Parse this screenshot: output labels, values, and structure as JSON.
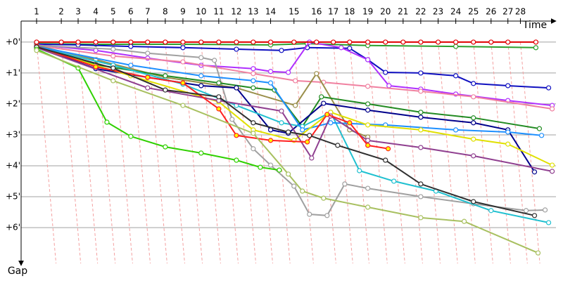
{
  "chart_data": {
    "type": "line",
    "x_label": "Time",
    "y_label": "Gap",
    "xlim": [
      0,
      197
    ],
    "ylim": [
      -0.68,
      7.16
    ],
    "y_reversed": true,
    "grid": true,
    "lap_lines": true,
    "xticks": [
      {
        "value": 5.7,
        "label": "1"
      },
      {
        "value": 14.8,
        "label": "2"
      },
      {
        "value": 21.0,
        "label": "3"
      },
      {
        "value": 27.5,
        "label": "4"
      },
      {
        "value": 33.9,
        "label": "5"
      },
      {
        "value": 40.4,
        "label": "6"
      },
      {
        "value": 46.6,
        "label": "7"
      },
      {
        "value": 53.1,
        "label": "8"
      },
      {
        "value": 59.6,
        "label": "9"
      },
      {
        "value": 66.3,
        "label": "10"
      },
      {
        "value": 72.8,
        "label": "11"
      },
      {
        "value": 79.3,
        "label": "12"
      },
      {
        "value": 85.5,
        "label": "13"
      },
      {
        "value": 91.9,
        "label": "14"
      },
      {
        "value": 100.5,
        "label": "15"
      },
      {
        "value": 108.8,
        "label": "16"
      },
      {
        "value": 115.0,
        "label": "17"
      },
      {
        "value": 121.0,
        "label": "18"
      },
      {
        "value": 127.7,
        "label": "19"
      },
      {
        "value": 134.2,
        "label": "20"
      },
      {
        "value": 140.7,
        "label": "21"
      },
      {
        "value": 147.2,
        "label": "22"
      },
      {
        "value": 153.6,
        "label": "23"
      },
      {
        "value": 160.1,
        "label": "24"
      },
      {
        "value": 166.6,
        "label": "25"
      },
      {
        "value": 173.1,
        "label": "26"
      },
      {
        "value": 179.3,
        "label": "27"
      },
      {
        "value": 183.9,
        "label": "28"
      }
    ],
    "yticks": [
      {
        "value": 0,
        "label": "+0'"
      },
      {
        "value": 1,
        "label": "+1'"
      },
      {
        "value": 2,
        "label": "+2'"
      },
      {
        "value": 3,
        "label": "+3'"
      },
      {
        "value": 4,
        "label": "+4'"
      },
      {
        "value": 5,
        "label": "+5'"
      },
      {
        "value": 6,
        "label": "+6'"
      }
    ],
    "series": [
      {
        "color": "#2ca02c",
        "x": [
          5.7,
          27.5,
          59.6,
          91.9,
          105.4,
          127.7,
          160.1,
          189.6
        ],
        "values": [
          0.05,
          0.07,
          0.07,
          0.09,
          0.05,
          0.11,
          0.14,
          0.18
        ]
      },
      {
        "color": "#1010c0",
        "x": [
          5.7,
          21.0,
          40.4,
          59.6,
          79.3,
          95.9,
          105.4,
          121.0,
          127.7,
          134.2,
          147.2,
          160.1,
          166.6,
          179.3,
          194.3
        ],
        "values": [
          0.07,
          0.09,
          0.14,
          0.18,
          0.23,
          0.27,
          0.18,
          0.2,
          0.57,
          0.98,
          1.0,
          1.09,
          1.34,
          1.41,
          1.48
        ]
      },
      {
        "color": "#b030ff",
        "x": [
          5.7,
          27.5,
          46.6,
          66.3,
          85.5,
          91.9,
          98.4,
          106.2,
          117.9,
          127.7,
          135.5,
          147.2,
          160.1,
          179.3,
          195.6
        ],
        "values": [
          0.09,
          0.27,
          0.52,
          0.75,
          0.86,
          0.95,
          0.98,
          0,
          0.18,
          0.57,
          1.41,
          1.52,
          1.68,
          1.89,
          2.05
        ]
      },
      {
        "color": "#f080a0",
        "x": [
          5.7,
          33.9,
          59.6,
          85.5,
          101.0,
          111.4,
          127.7,
          147.2,
          166.6,
          195.6
        ],
        "values": [
          0.11,
          0.45,
          0.64,
          1.02,
          1.25,
          1.3,
          1.43,
          1.59,
          1.77,
          2.16
        ]
      },
      {
        "color": "#a0a0a0",
        "x": [
          5.7,
          33.9,
          46.6,
          66.3,
          71.2,
          77.7,
          85.5,
          91.9,
          100.5,
          106.2,
          112.7,
          119.2,
          127.7,
          147.2,
          166.6,
          186.0,
          193.0
        ],
        "values": [
          0.11,
          0.23,
          0.36,
          0.5,
          0.59,
          2.5,
          3.45,
          3.98,
          4.66,
          5.57,
          5.61,
          4.59,
          4.73,
          5.0,
          5.23,
          5.45,
          5.43
        ]
      },
      {
        "color": "#9a8f4a",
        "x": [
          5.7,
          27.5,
          53.1,
          79.3,
          101.0,
          108.8,
          121.0,
          127.7
        ],
        "values": [
          0.11,
          0.57,
          1.14,
          1.48,
          2.05,
          1.02,
          2.84,
          3.07
        ]
      },
      {
        "color": "#228b22",
        "x": [
          5.7,
          27.5,
          53.1,
          72.8,
          85.5,
          93.3,
          103.6,
          110.6,
          127.7,
          147.2,
          166.6,
          190.9
        ],
        "values": [
          0.14,
          0.73,
          1.09,
          1.32,
          1.48,
          1.55,
          2.73,
          1.77,
          2.0,
          2.27,
          2.45,
          2.8
        ]
      },
      {
        "color": "#00008b",
        "x": [
          5.7,
          27.5,
          46.6,
          66.3,
          79.3,
          91.9,
          98.4,
          111.4,
          127.7,
          147.2,
          166.6,
          179.3,
          189.1
        ],
        "values": [
          0.16,
          0.86,
          1.14,
          1.41,
          1.48,
          2.84,
          2.95,
          1.98,
          2.2,
          2.43,
          2.61,
          2.84,
          4.2
        ]
      },
      {
        "color": "#20c0d0",
        "x": [
          5.7,
          33.9,
          59.6,
          79.3,
          95.9,
          103.6,
          114.0,
          124.6,
          137.3,
          152.8,
          173.1,
          194.3
        ],
        "values": [
          0.16,
          0.75,
          1.36,
          2.05,
          2.61,
          2.73,
          2.27,
          4.16,
          4.5,
          4.82,
          5.45,
          5.84
        ]
      },
      {
        "color": "#1e90ff",
        "x": [
          5.7,
          40.4,
          66.3,
          85.5,
          91.9,
          103.6,
          114.0,
          134.2,
          160.1,
          179.3,
          191.7
        ],
        "values": [
          0.14,
          0.75,
          1.09,
          1.25,
          1.32,
          2.84,
          2.61,
          2.68,
          2.84,
          2.91,
          3.02
        ]
      },
      {
        "color": "#e0e000",
        "x": [
          5.7,
          40.4,
          72.8,
          85.5,
          100.5,
          114.0,
          127.7,
          147.2,
          166.6,
          179.3,
          195.6
        ],
        "values": [
          0.18,
          1.09,
          1.93,
          2.84,
          3.18,
          2.27,
          2.68,
          2.84,
          3.14,
          3.3,
          3.98
        ]
      },
      {
        "color": "#904090",
        "x": [
          5.7,
          46.6,
          72.8,
          95.9,
          107.0,
          114.0,
          127.7,
          147.2,
          166.6,
          195.6
        ],
        "values": [
          0.18,
          1.48,
          1.89,
          2.23,
          3.75,
          2.39,
          3.18,
          3.41,
          3.68,
          4.18
        ]
      },
      {
        "color": "#ff2020",
        "marker_fill": "#ffff00",
        "x": [
          5.7,
          27.5,
          46.6,
          59.6,
          72.8,
          79.3,
          91.9,
          105.4,
          112.7,
          121.0,
          127.7,
          135.2
        ],
        "values": [
          0.14,
          0.8,
          1.14,
          1.32,
          2.16,
          3.02,
          3.18,
          3.23,
          2.34,
          2.61,
          3.34,
          3.45
        ]
      },
      {
        "color": "#303030",
        "x": [
          5.7,
          33.9,
          53.1,
          72.8,
          85.5,
          98.4,
          106.2,
          116.6,
          134.2,
          147.2,
          166.6,
          189.1
        ],
        "values": [
          0.16,
          0.84,
          1.55,
          1.77,
          2.61,
          2.91,
          3.02,
          3.34,
          3.82,
          4.59,
          5.16,
          5.61
        ]
      },
      {
        "color": "#30d000",
        "x": [
          5.7,
          21.0,
          31.6,
          40.4,
          53.1,
          66.3,
          79.3,
          88.1,
          95.1
        ],
        "values": [
          0.23,
          0.84,
          2.59,
          3.05,
          3.39,
          3.59,
          3.82,
          4.05,
          4.14
        ]
      },
      {
        "color": "#a8c060",
        "x": [
          5.7,
          33.9,
          59.6,
          85.5,
          98.4,
          103.6,
          111.4,
          127.7,
          147.2,
          163.2,
          190.4
        ],
        "values": [
          0.27,
          1.25,
          2.05,
          2.95,
          4.27,
          4.82,
          5.05,
          5.34,
          5.68,
          5.8,
          6.82
        ]
      },
      {
        "color": "#e00000",
        "x": [
          5.7,
          14.8,
          21.0,
          27.5,
          33.9,
          40.4,
          46.6,
          53.1,
          59.6,
          66.3,
          72.8,
          79.3,
          85.5,
          91.9,
          100.5,
          108.8,
          115.0,
          121.0,
          127.7,
          134.2,
          140.7,
          147.2,
          153.6,
          160.1,
          166.6,
          173.1,
          179.3,
          189.6
        ],
        "values": [
          0,
          0,
          0,
          0,
          0,
          0,
          0,
          0,
          0,
          0,
          0,
          0,
          0,
          0,
          0,
          0,
          0,
          0,
          0,
          0,
          0,
          0,
          0,
          0,
          0,
          0,
          0,
          0
        ]
      }
    ]
  }
}
